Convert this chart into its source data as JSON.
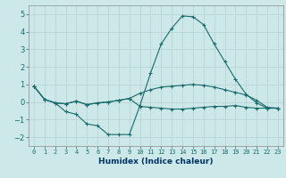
{
  "xlabel": "Humidex (Indice chaleur)",
  "bg_color": "#cce8e8",
  "grid_color": "#b8d4d4",
  "line_color": "#1a6b6b",
  "x_ticks": [
    0,
    1,
    2,
    3,
    4,
    5,
    6,
    7,
    8,
    9,
    10,
    11,
    12,
    13,
    14,
    15,
    16,
    17,
    18,
    19,
    20,
    21,
    22,
    23
  ],
  "ylim": [
    -2.5,
    5.5
  ],
  "xlim": [
    -0.5,
    23.5
  ],
  "line_spike_x": [
    0,
    1,
    2,
    3,
    4,
    5,
    6,
    7,
    8,
    9,
    10,
    11,
    12,
    13,
    14,
    15,
    16,
    17,
    18,
    19,
    20,
    21,
    22,
    23
  ],
  "line_spike_y": [
    0.9,
    0.15,
    -0.05,
    -0.55,
    -0.7,
    -1.25,
    -1.35,
    -1.85,
    -1.85,
    -1.85,
    -0.2,
    1.65,
    3.3,
    4.2,
    4.9,
    4.85,
    4.4,
    3.3,
    2.3,
    1.3,
    0.45,
    -0.05,
    -0.35,
    -0.35
  ],
  "line_top_x": [
    0,
    1,
    2,
    3,
    4,
    5,
    6,
    7,
    8,
    9,
    10,
    11,
    12,
    13,
    14,
    15,
    16,
    17,
    18,
    19,
    20,
    21,
    22,
    23
  ],
  "line_top_y": [
    0.9,
    0.15,
    -0.05,
    -0.1,
    0.05,
    -0.15,
    -0.05,
    0.0,
    0.1,
    0.2,
    0.5,
    0.7,
    0.85,
    0.9,
    0.95,
    1.0,
    0.95,
    0.85,
    0.7,
    0.55,
    0.4,
    0.1,
    -0.3,
    -0.35
  ],
  "line_bot_x": [
    0,
    1,
    2,
    3,
    4,
    5,
    6,
    7,
    8,
    9,
    10,
    11,
    12,
    13,
    14,
    15,
    16,
    17,
    18,
    19,
    20,
    21,
    22,
    23
  ],
  "line_bot_y": [
    0.9,
    0.15,
    -0.05,
    -0.1,
    0.05,
    -0.15,
    -0.05,
    0.0,
    0.1,
    0.2,
    -0.25,
    -0.3,
    -0.35,
    -0.4,
    -0.4,
    -0.35,
    -0.3,
    -0.25,
    -0.25,
    -0.2,
    -0.3,
    -0.35,
    -0.35,
    -0.35
  ],
  "yticks": [
    -2,
    -1,
    0,
    1,
    2,
    3,
    4,
    5
  ],
  "xlabel_color": "#003366",
  "tick_color": "#1a6b6b",
  "spine_color": "#999999"
}
